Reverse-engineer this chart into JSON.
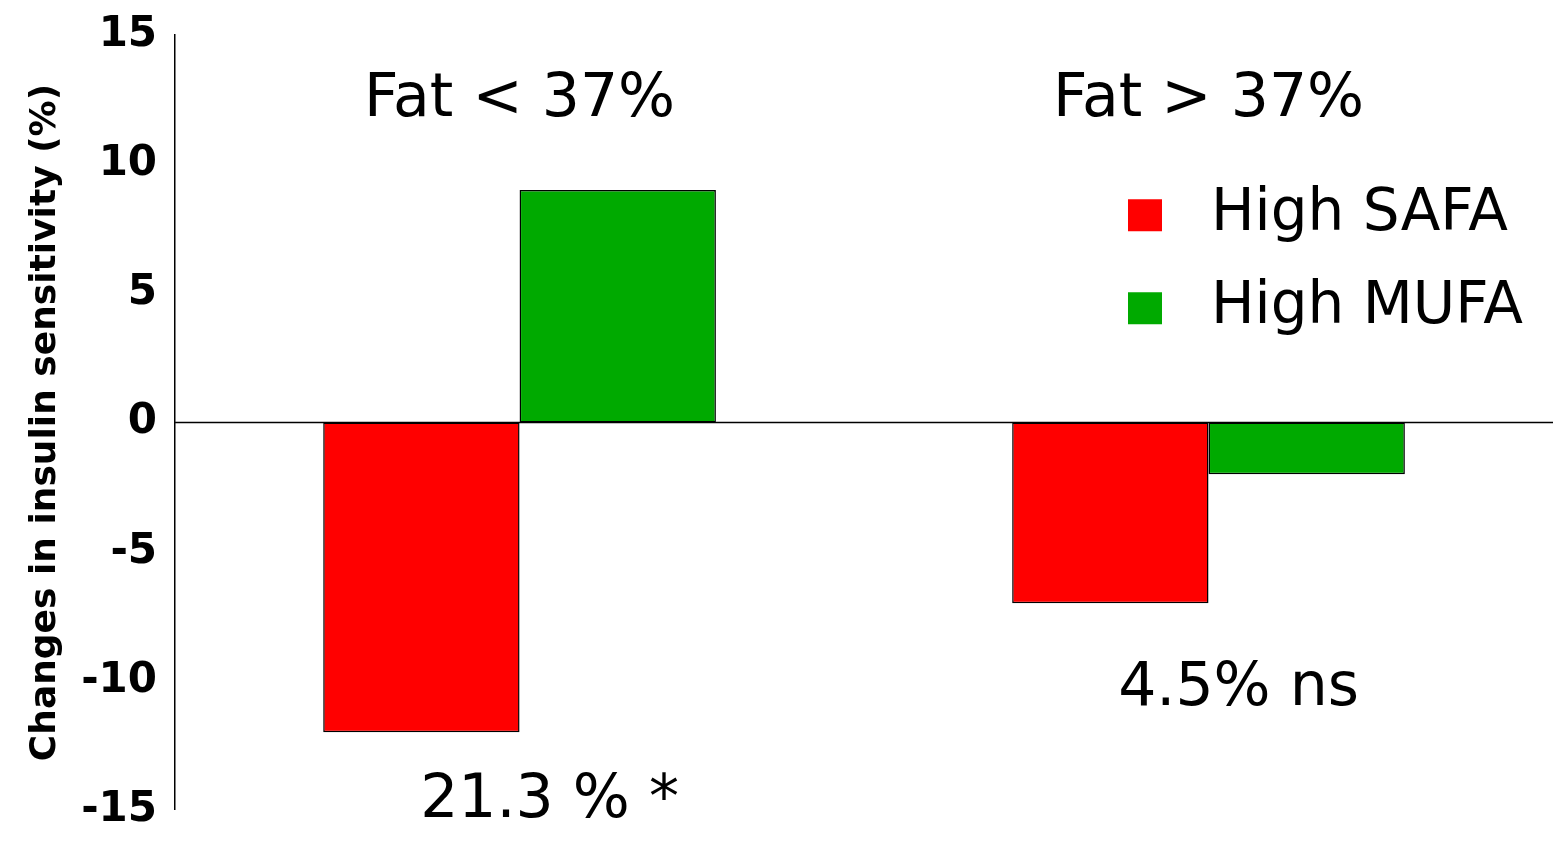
{
  "chart_data": {
    "type": "bar",
    "ylabel": "Changes in insulin sensitivity (%)",
    "categories": [
      "Fat < 37%",
      "Fat > 37%"
    ],
    "series": [
      {
        "name": "High SAFA",
        "color": "#ff0000",
        "values": [
          -12,
          -7
        ]
      },
      {
        "name": "High MUFA",
        "color": "#00aa00",
        "values": [
          9,
          -2
        ]
      }
    ],
    "ylim": [
      -15,
      15
    ],
    "yticks": [
      -15,
      -10,
      -5,
      0,
      5,
      10,
      15
    ],
    "grid": false,
    "legend": "top right",
    "ref_lines": [
      {
        "axis": "y",
        "value": 0,
        "color": "#000000"
      }
    ],
    "annotations": [
      "21.3 % *",
      "4.5% ns"
    ]
  }
}
